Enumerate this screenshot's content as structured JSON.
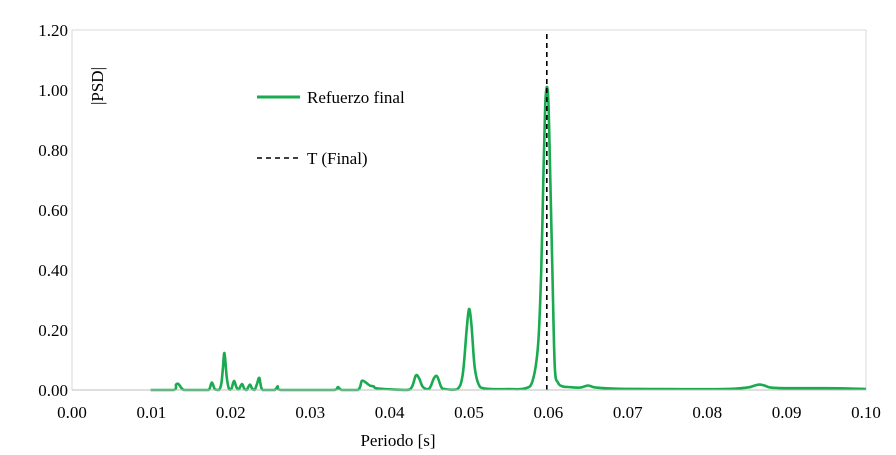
{
  "chart_data": {
    "type": "line",
    "xlabel": "Periodo [s]",
    "ylabel": "|PSD|",
    "xlim": [
      0.0,
      0.1
    ],
    "ylim": [
      0.0,
      1.2
    ],
    "x_ticks": [
      "0.00",
      "0.01",
      "0.02",
      "0.03",
      "0.04",
      "0.05",
      "0.06",
      "0.07",
      "0.08",
      "0.09",
      "0.10"
    ],
    "y_ticks": [
      "0.00",
      "0.20",
      "0.40",
      "0.60",
      "0.80",
      "1.00",
      "1.20"
    ],
    "grid": false,
    "legend_placement": "upper-left-inside",
    "series": [
      {
        "name": "Refuerzo final",
        "color": "#1aaa50",
        "style": "solid",
        "x": [
          0.0099,
          0.0128,
          0.0131,
          0.0134,
          0.0138,
          0.0142,
          0.016,
          0.0172,
          0.0176,
          0.018,
          0.0185,
          0.0188,
          0.019,
          0.0192,
          0.0195,
          0.0198,
          0.0201,
          0.0204,
          0.0207,
          0.021,
          0.0214,
          0.0217,
          0.022,
          0.0224,
          0.0227,
          0.023,
          0.0233,
          0.0236,
          0.024,
          0.0255,
          0.0259,
          0.0263,
          0.03,
          0.033,
          0.0335,
          0.034,
          0.036,
          0.0365,
          0.037,
          0.0375,
          0.038,
          0.0385,
          0.042,
          0.0428,
          0.0433,
          0.0437,
          0.0442,
          0.045,
          0.0456,
          0.046,
          0.0465,
          0.047,
          0.0485,
          0.0492,
          0.0497,
          0.05,
          0.0503,
          0.0507,
          0.0512,
          0.052,
          0.055,
          0.057,
          0.058,
          0.0587,
          0.0591,
          0.0594,
          0.0596,
          0.0598,
          0.06,
          0.0602,
          0.0605,
          0.0608,
          0.0612,
          0.0618,
          0.0625,
          0.064,
          0.065,
          0.066,
          0.069,
          0.075,
          0.082,
          0.085,
          0.086,
          0.0866,
          0.0872,
          0.088,
          0.09,
          0.095,
          0.098,
          0.1
        ],
        "y": [
          0.0,
          0.0,
          0.018,
          0.02,
          0.006,
          0.0,
          0.0,
          0.0,
          0.025,
          0.002,
          0.0,
          0.02,
          0.07,
          0.123,
          0.04,
          0.002,
          0.006,
          0.03,
          0.01,
          0.002,
          0.02,
          0.004,
          0.0,
          0.018,
          0.004,
          0.0,
          0.02,
          0.04,
          0.0,
          0.0,
          0.012,
          0.0,
          0.0,
          0.0,
          0.01,
          0.0,
          0.0,
          0.03,
          0.025,
          0.015,
          0.012,
          0.005,
          0.0,
          0.01,
          0.048,
          0.04,
          0.01,
          0.005,
          0.04,
          0.045,
          0.01,
          0.003,
          0.002,
          0.05,
          0.2,
          0.27,
          0.22,
          0.08,
          0.02,
          0.005,
          0.003,
          0.005,
          0.03,
          0.15,
          0.4,
          0.75,
          0.95,
          1.01,
          0.96,
          0.75,
          0.4,
          0.08,
          0.025,
          0.012,
          0.01,
          0.008,
          0.015,
          0.008,
          0.004,
          0.003,
          0.003,
          0.008,
          0.015,
          0.018,
          0.015,
          0.008,
          0.006,
          0.006,
          0.005,
          0.003
        ]
      },
      {
        "name": "T (Final)",
        "color": "#000000",
        "style": "dashed",
        "x": [
          0.0598,
          0.0598
        ],
        "y": [
          0.0,
          1.2
        ]
      }
    ]
  }
}
